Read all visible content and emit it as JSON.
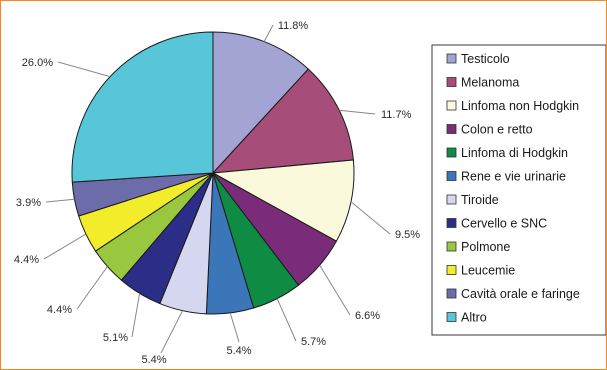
{
  "chart_data": {
    "type": "pie",
    "title": "",
    "legend_position": "right",
    "start_angle_deg": 0,
    "direction": "clockwise",
    "slices": [
      {
        "name": "Testicolo",
        "value": 11.8,
        "label": "11.8%",
        "color": "#a3a4d3"
      },
      {
        "name": "Melanoma",
        "value": 11.7,
        "label": "11.7%",
        "color": "#a64e79"
      },
      {
        "name": "Linfoma non Hodgkin",
        "value": 9.5,
        "label": "9.5%",
        "color": "#fbf9dc"
      },
      {
        "name": "Colon e retto",
        "value": 6.6,
        "label": "6.6%",
        "color": "#7a2b7a"
      },
      {
        "name": "Linfoma di Hodgkin",
        "value": 5.7,
        "label": "5.7%",
        "color": "#0e8c43"
      },
      {
        "name": "Rene e vie urinarie",
        "value": 5.4,
        "label": "5.4%",
        "color": "#3a76b8"
      },
      {
        "name": "Tiroide",
        "value": 5.4,
        "label": "5.4%",
        "color": "#d5d6ef"
      },
      {
        "name": "Cervello e SNC",
        "value": 5.1,
        "label": "5.1%",
        "color": "#2b2d86"
      },
      {
        "name": "Polmone",
        "value": 4.4,
        "label": "4.4%",
        "color": "#99c73e"
      },
      {
        "name": "Leucemie",
        "value": 4.4,
        "label": "4.4%",
        "color": "#f2ec2b"
      },
      {
        "name": "Cavità orale e faringe",
        "value": 3.9,
        "label": "3.9%",
        "color": "#6b6ca9"
      },
      {
        "name": "Altro",
        "value": 26.0,
        "label": "26.0%",
        "color": "#56c6d8"
      }
    ]
  },
  "colors": {
    "frame_border": "#ee8a2a",
    "slice_stroke": "#1a1a1a",
    "leader_line": "#888888"
  }
}
